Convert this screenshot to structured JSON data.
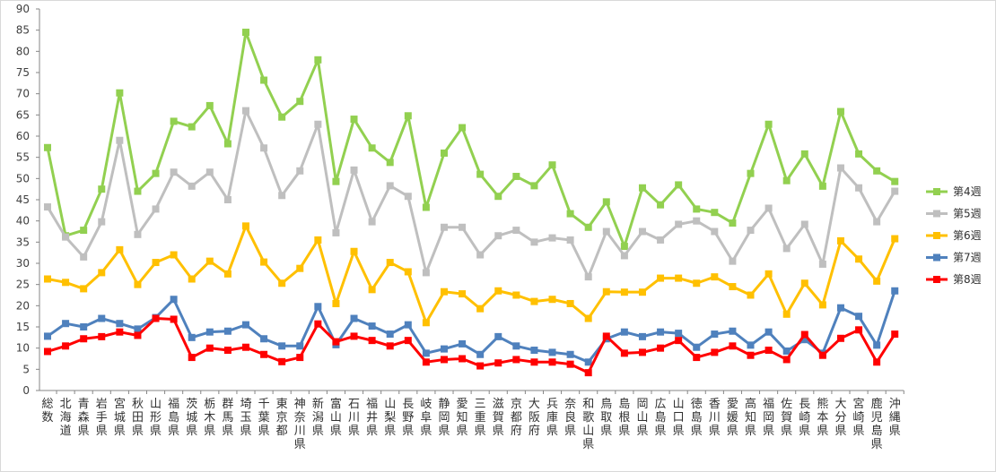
{
  "chart_data": {
    "type": "line",
    "ylim": [
      0,
      90
    ],
    "yticks": [
      0,
      5,
      10,
      15,
      20,
      25,
      30,
      35,
      40,
      45,
      50,
      55,
      60,
      65,
      70,
      75,
      80,
      85,
      90
    ],
    "grid": false,
    "legend_position": "right",
    "categories": [
      "総数",
      "北海道",
      "青森県",
      "岩手県",
      "宮城県",
      "秋田県",
      "山形県",
      "福島県",
      "茨城県",
      "栃木県",
      "群馬県",
      "埼玉県",
      "千葉県",
      "東京都",
      "神奈川県",
      "新潟県",
      "富山県",
      "石川県",
      "福井県",
      "山梨県",
      "長野県",
      "岐阜県",
      "静岡県",
      "愛知県",
      "三重県",
      "滋賀県",
      "京都府",
      "大阪府",
      "兵庫県",
      "奈良県",
      "和歌山県",
      "鳥取県",
      "島根県",
      "岡山県",
      "広島県",
      "山口県",
      "徳島県",
      "香川県",
      "愛媛県",
      "高知県",
      "福岡県",
      "佐賀県",
      "長崎県",
      "熊本県",
      "大分県",
      "宮崎県",
      "鹿児島県",
      "沖縄県"
    ],
    "series": [
      {
        "name": "第4週",
        "color": "#92d050",
        "values": [
          57.3,
          36.5,
          37.8,
          47.5,
          70.2,
          47.0,
          51.2,
          63.5,
          62.2,
          67.2,
          58.2,
          84.5,
          73.2,
          64.5,
          68.2,
          78.0,
          49.3,
          64.0,
          57.2,
          53.8,
          64.8,
          43.2,
          56.0,
          62.0,
          51.0,
          45.8,
          50.5,
          48.3,
          53.2,
          41.7,
          38.5,
          44.5,
          34.0,
          47.8,
          43.8,
          48.5,
          42.8,
          42.0,
          39.5,
          51.2,
          62.8,
          49.5,
          55.8,
          48.2,
          65.8,
          55.8,
          51.8,
          49.3
        ]
      },
      {
        "name": "第5週",
        "color": "#bfbfbf",
        "values": [
          43.3,
          36.2,
          31.5,
          39.8,
          59.0,
          36.8,
          42.8,
          51.5,
          48.2,
          51.5,
          45.0,
          66.0,
          57.2,
          46.0,
          51.8,
          62.8,
          37.2,
          52.0,
          39.8,
          48.3,
          45.8,
          27.8,
          38.5,
          38.5,
          32.0,
          36.5,
          37.8,
          35.0,
          36.0,
          35.5,
          26.8,
          37.5,
          31.8,
          37.5,
          35.5,
          39.2,
          40.0,
          37.5,
          30.5,
          37.8,
          43.0,
          33.5,
          39.2,
          29.8,
          52.5,
          47.8,
          39.8,
          47.0
        ]
      },
      {
        "name": "第6週",
        "color": "#ffc000",
        "values": [
          26.3,
          25.5,
          24.0,
          27.8,
          33.2,
          25.0,
          30.2,
          32.0,
          26.3,
          30.5,
          27.5,
          38.8,
          30.3,
          25.3,
          28.8,
          35.5,
          20.5,
          32.8,
          23.8,
          30.2,
          28.0,
          16.0,
          23.3,
          22.8,
          19.3,
          23.5,
          22.5,
          21.0,
          21.5,
          20.5,
          17.0,
          23.3,
          23.2,
          23.2,
          26.5,
          26.5,
          25.3,
          26.8,
          24.5,
          22.5,
          27.5,
          18.0,
          25.3,
          20.2,
          35.3,
          31.0,
          25.8,
          35.8
        ]
      },
      {
        "name": "第7週",
        "color": "#4f81bd",
        "values": [
          12.8,
          15.8,
          15.0,
          17.0,
          15.8,
          14.5,
          17.2,
          21.5,
          12.5,
          13.8,
          14.0,
          15.5,
          12.2,
          10.5,
          10.5,
          19.8,
          10.8,
          17.0,
          15.2,
          13.3,
          15.5,
          8.8,
          9.8,
          11.0,
          8.5,
          12.7,
          10.5,
          9.5,
          9.0,
          8.5,
          6.7,
          12.2,
          13.8,
          12.7,
          13.8,
          13.5,
          10.2,
          13.3,
          14.0,
          10.7,
          13.8,
          9.3,
          12.0,
          8.8,
          19.5,
          17.5,
          10.7,
          23.5
        ]
      },
      {
        "name": "第8週",
        "color": "#ff0000",
        "values": [
          9.2,
          10.5,
          12.2,
          12.7,
          13.8,
          13.0,
          17.0,
          16.8,
          7.8,
          10.0,
          9.5,
          10.2,
          8.5,
          6.8,
          7.8,
          15.7,
          11.5,
          12.8,
          11.8,
          10.5,
          11.8,
          6.7,
          7.3,
          7.5,
          5.8,
          6.5,
          7.3,
          6.7,
          6.7,
          6.2,
          4.2,
          12.8,
          8.8,
          9.0,
          10.0,
          11.8,
          7.8,
          9.0,
          10.5,
          8.3,
          9.5,
          7.3,
          13.2,
          8.3,
          12.3,
          14.3,
          6.7,
          13.3
        ]
      }
    ]
  }
}
